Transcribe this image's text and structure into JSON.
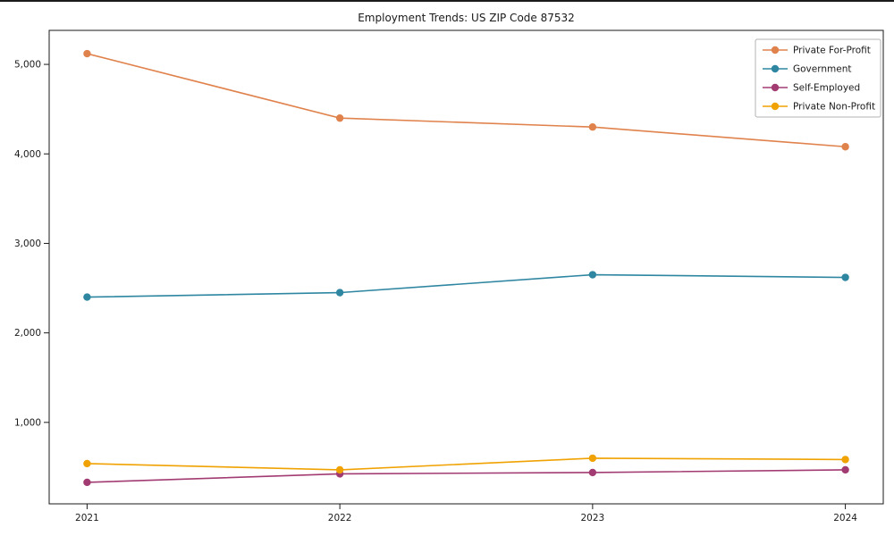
{
  "chart_data": {
    "type": "line",
    "title": "Employment Trends: US ZIP Code 87532",
    "xlabel": "",
    "ylabel": "",
    "x": [
      "2021",
      "2022",
      "2023",
      "2024"
    ],
    "series": [
      {
        "name": "Private For-Profit",
        "color": "#e0824c",
        "values": [
          5120,
          4400,
          4300,
          4080
        ]
      },
      {
        "name": "Government",
        "color": "#2e86a1",
        "values": [
          2400,
          2450,
          2650,
          2620
        ]
      },
      {
        "name": "Self-Employed",
        "color": "#a23b72",
        "values": [
          330,
          425,
          440,
          470
        ]
      },
      {
        "name": "Private Non-Profit",
        "color": "#f0a202",
        "values": [
          540,
          470,
          600,
          585
        ]
      }
    ],
    "yticks": [
      1000,
      2000,
      3000,
      4000,
      5000
    ],
    "ytick_labels": [
      "1,000",
      "2,000",
      "3,000",
      "4,000",
      "5,000"
    ],
    "ylim": [
      90,
      5380
    ],
    "grid": false,
    "legend_position": "upper right",
    "marker": "circle"
  }
}
